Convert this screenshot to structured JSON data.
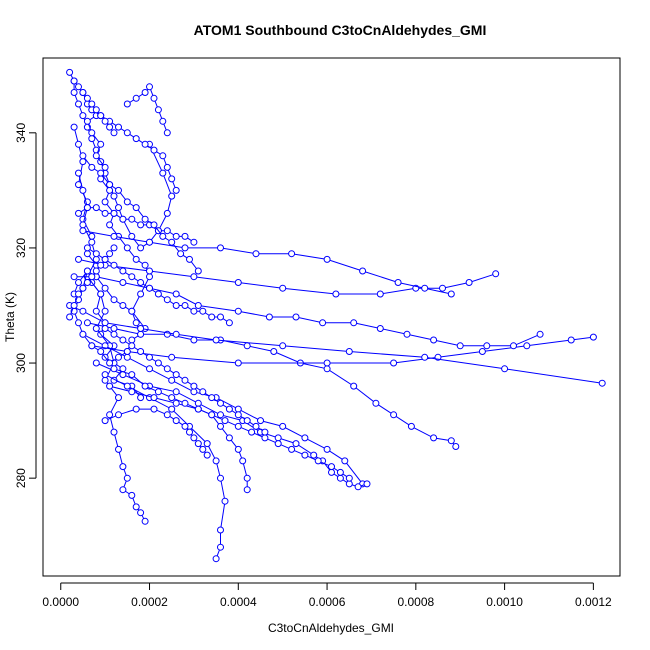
{
  "chart_data": {
    "type": "scatter",
    "title": "ATOM1 Southbound C3toCnAldehydes_GMI",
    "xlabel": "C3toCnAldehydes_GMI",
    "ylabel": "Theta (K)",
    "xlim": [
      -4e-05,
      0.00126
    ],
    "ylim": [
      263,
      353
    ],
    "xticks": [
      {
        "value": 0.0,
        "label": "0.0000"
      },
      {
        "value": 0.0002,
        "label": "0.0002"
      },
      {
        "value": 0.0004,
        "label": "0.0004"
      },
      {
        "value": 0.0006,
        "label": "0.0006"
      },
      {
        "value": 0.0008,
        "label": "0.0008"
      },
      {
        "value": 0.001,
        "label": "0.0010"
      },
      {
        "value": 0.0012,
        "label": "0.0012"
      }
    ],
    "yticks": [
      {
        "value": 280,
        "label": "280"
      },
      {
        "value": 300,
        "label": "300"
      },
      {
        "value": 320,
        "label": "320"
      },
      {
        "value": 340,
        "label": "340"
      }
    ],
    "grid": false,
    "legend": "none",
    "marker": "open-circle",
    "connected": true,
    "color": "#0000ff",
    "series": [
      {
        "x": [
          2e-05,
          3e-05,
          3e-05,
          4e-05,
          5e-05,
          6e-05,
          7e-05,
          8e-05,
          9e-05,
          0.0001,
          0.00011,
          0.00012,
          0.00013,
          0.00014,
          0.00016,
          0.00018,
          0.0002,
          0.00022,
          0.00024,
          0.00025,
          0.00023,
          0.0002
        ],
        "y": [
          350.5,
          349,
          347,
          345,
          343,
          341,
          339,
          337,
          335,
          333,
          331,
          329,
          327,
          325,
          322,
          320,
          321,
          323,
          326,
          329,
          333,
          338
        ]
      },
      {
        "x": [
          3e-05,
          4e-05,
          5e-05,
          4e-05,
          6e-05,
          5e-05,
          7e-05,
          6e-05,
          8e-05,
          7e-05,
          9e-05,
          8e-05,
          0.0001,
          9e-05,
          0.00012,
          0.0001,
          0.00014,
          0.00012,
          0.00016,
          0.00018
        ],
        "y": [
          341,
          338,
          335,
          331,
          328,
          325,
          322,
          319,
          317,
          314,
          312,
          309,
          307,
          305,
          303,
          301,
          299,
          297,
          296,
          294
        ]
      },
      {
        "x": [
          4e-05,
          5e-05,
          6e-05,
          5e-05,
          7e-05,
          8e-05,
          6e-05,
          9e-05,
          0.0001,
          8e-05,
          0.00011,
          0.00012,
          0.0001,
          0.00013,
          0.00011,
          0.00012,
          0.00013,
          0.00014,
          0.00015,
          0.00014,
          0.00016,
          0.00017,
          0.00018,
          0.00019
        ],
        "y": [
          333,
          330,
          327,
          324,
          321,
          318,
          315,
          312,
          309,
          306,
          303,
          300,
          297,
          294,
          291,
          288,
          285,
          282,
          280,
          278,
          277,
          275,
          274,
          272.5
        ]
      },
      {
        "x": [
          5e-05,
          6e-05,
          7e-05,
          8e-05,
          6e-05,
          7e-05,
          9e-05,
          8e-05,
          0.0001,
          9e-05,
          0.00011,
          0.0001,
          0.00012,
          0.00011,
          0.00013,
          0.00015,
          0.00017,
          0.00019,
          0.0002,
          0.00018,
          0.00016,
          0.00019
        ],
        "y": [
          347,
          345,
          344,
          343,
          342,
          340,
          338,
          336,
          334,
          332,
          330,
          328,
          326,
          324,
          322,
          320,
          318,
          317,
          315,
          312,
          309,
          306
        ]
      },
      {
        "x": [
          3e-05,
          4e-05,
          6e-05,
          8e-05,
          0.0001,
          0.00012,
          0.00014,
          0.00016,
          0.00017,
          0.00018,
          0.00016,
          0.00015,
          0.00013,
          0.00011,
          9e-05,
          7e-05,
          5e-05,
          4e-05,
          3e-05,
          4e-05,
          5e-05,
          6e-05
        ],
        "y": [
          312,
          314,
          316,
          315,
          313,
          311,
          310,
          309,
          307,
          305,
          304,
          302,
          301,
          300,
          302,
          303,
          305,
          307,
          309,
          311,
          313,
          316
        ]
      },
      {
        "x": [
          5e-05,
          0.0001,
          0.00015,
          0.0002,
          0.00025,
          0.0003,
          0.00035,
          0.0004,
          0.00045,
          0.0005,
          0.00055,
          0.0006,
          0.00064,
          0.00068
        ],
        "y": [
          305,
          303,
          301,
          299,
          297,
          295,
          294,
          292,
          290,
          289,
          287,
          285,
          283,
          279
        ]
      },
      {
        "x": [
          6e-05,
          0.00012,
          0.00018,
          0.00024,
          0.0003,
          0.00036,
          0.00042,
          0.00048,
          0.00054,
          0.0006,
          0.00066,
          0.00071,
          0.00075,
          0.00079,
          0.00084,
          0.00088,
          0.00089
        ],
        "y": [
          307,
          306,
          305,
          305,
          304,
          304,
          303,
          302,
          300,
          299,
          296,
          293,
          291,
          289,
          287,
          286.5,
          285.5
        ]
      },
      {
        "x": [
          7e-05,
          0.00015,
          0.00025,
          0.0004,
          0.0006,
          0.00075,
          0.00085,
          0.00095,
          0.00105,
          0.00115,
          0.0012
        ],
        "y": [
          303,
          302,
          301,
          300,
          300,
          300,
          301,
          302,
          303,
          304,
          304.5
        ]
      },
      {
        "x": [
          4e-05,
          0.0001,
          0.0002,
          0.0003,
          0.0004,
          0.0005,
          0.00062,
          0.00072,
          0.0008,
          0.00086,
          0.00092,
          0.00098
        ],
        "y": [
          318,
          317,
          316,
          315,
          314,
          313,
          312,
          312,
          313,
          313,
          314,
          315.5
        ]
      },
      {
        "x": [
          5e-05,
          0.00012,
          0.0002,
          0.00028,
          0.00036,
          0.00044,
          0.00052,
          0.0006,
          0.00068,
          0.00076,
          0.00082,
          0.00088
        ],
        "y": [
          323,
          322,
          321,
          320,
          320,
          319,
          319,
          318,
          316,
          314,
          313,
          312
        ]
      },
      {
        "x": [
          2e-05,
          5e-05,
          0.0001,
          0.00018,
          0.00026,
          0.00035,
          0.0005,
          0.00065,
          0.00082,
          0.001,
          0.00122
        ],
        "y": [
          310,
          309,
          307,
          306,
          305,
          304,
          303,
          302,
          301,
          299,
          296.5
        ]
      },
      {
        "x": [
          3e-05,
          8e-05,
          0.00014,
          0.0002,
          0.00026,
          0.00031,
          0.0004,
          0.00047,
          0.00053,
          0.00059,
          0.00066,
          0.00072,
          0.00078,
          0.00084,
          0.0009,
          0.00096,
          0.00102,
          0.00108
        ],
        "y": [
          315,
          315,
          314,
          313,
          312,
          310,
          309,
          308,
          308,
          307,
          307,
          306,
          305,
          304,
          303,
          303,
          303,
          305
        ]
      },
      {
        "x": [
          8e-05,
          0.00014,
          0.0002,
          0.00026,
          0.00031,
          0.00036,
          0.00041,
          0.00045,
          0.00049,
          0.00053,
          0.00057,
          0.00059,
          0.00061,
          0.00063,
          0.00065,
          0.00067,
          0.00069
        ],
        "y": [
          300,
          298,
          296,
          295,
          293,
          291,
          290,
          288,
          287,
          286,
          284,
          283,
          281,
          280,
          279,
          278.5,
          279
        ]
      },
      {
        "x": [
          0.0001,
          0.00015,
          0.0002,
          0.00025,
          0.00029,
          0.00033,
          0.00035,
          0.00036,
          0.00037,
          0.00036,
          0.00036,
          0.00035
        ],
        "y": [
          298,
          296,
          294,
          292,
          289,
          286,
          283,
          280,
          276,
          271,
          268,
          266
        ]
      },
      {
        "x": [
          0.00011,
          0.00016,
          0.00021,
          0.00026,
          0.00031,
          0.00034,
          0.00036,
          0.00038,
          0.0004,
          0.00041,
          0.00042,
          0.00042
        ],
        "y": [
          296,
          295,
          294,
          293,
          292,
          291,
          289,
          287,
          285,
          283,
          280,
          278
        ]
      },
      {
        "x": [
          0.0001,
          0.00013,
          0.00017,
          0.00021,
          0.00024,
          0.00026,
          0.00028,
          0.00029,
          0.0003,
          0.00031,
          0.00032,
          0.00033
        ],
        "y": [
          290,
          291,
          292,
          292,
          291,
          290,
          289,
          288,
          287,
          286,
          285,
          284
        ]
      },
      {
        "x": [
          0.00012,
          0.00016,
          0.00019,
          0.00022,
          0.00025,
          0.00028,
          0.00031,
          0.00034,
          0.00037,
          0.0004,
          0.00043,
          0.00046,
          0.00049,
          0.00052,
          0.00055,
          0.00058,
          0.00061,
          0.00063,
          0.00065
        ],
        "y": [
          299,
          298,
          296,
          295,
          294,
          293,
          292,
          291,
          290,
          289,
          288,
          287,
          286,
          285,
          284,
          283,
          282,
          281,
          280
        ]
      },
      {
        "x": [
          7e-05,
          9e-05,
          0.00011,
          0.00013,
          0.00015,
          0.00017,
          0.00019,
          0.00021,
          0.00023,
          0.00024,
          0.00025,
          0.00026
        ],
        "y": [
          344,
          343,
          342,
          341,
          340,
          339,
          338,
          337,
          336,
          334,
          332,
          330
        ]
      },
      {
        "x": [
          4e-05,
          6e-05,
          8e-05,
          0.0001,
          0.00012,
          0.00014,
          0.00016,
          0.00018,
          0.0002,
          0.00022,
          0.00024,
          0.00026,
          0.00028,
          0.0003
        ],
        "y": [
          326,
          327,
          327,
          326,
          326,
          325,
          325,
          324,
          324,
          323,
          323,
          322,
          322,
          321
        ]
      },
      {
        "x": [
          0.00015,
          0.00017,
          0.00019,
          0.0002,
          0.00021,
          0.00022,
          0.00023,
          0.00024
        ],
        "y": [
          345,
          346,
          347,
          348,
          346,
          344,
          342,
          340
        ]
      },
      {
        "x": [
          6e-05,
          8e-05,
          0.0001,
          0.00012,
          0.00014,
          0.00016,
          0.00018,
          0.0002,
          0.00022,
          0.00024,
          0.00026,
          0.00028,
          0.0003,
          0.00032,
          0.00034,
          0.00036,
          0.00038
        ],
        "y": [
          320,
          319,
          318,
          317,
          316,
          315,
          314,
          313,
          312,
          311,
          310,
          310,
          309,
          309,
          308,
          308,
          307
        ]
      },
      {
        "x": [
          5e-05,
          7e-05,
          9e-05,
          0.00011,
          0.00013,
          0.00015,
          0.00017,
          0.00019,
          0.00021,
          0.00023,
          0.00025,
          0.00027,
          0.00029,
          0.00031
        ],
        "y": [
          336,
          334,
          333,
          331,
          330,
          328,
          327,
          325,
          324,
          322,
          321,
          319,
          318,
          316
        ]
      },
      {
        "x": [
          3e-05,
          4e-05,
          5e-05,
          6e-05,
          7e-05,
          8e-05,
          9e-05,
          0.0001,
          0.00011,
          0.00012
        ],
        "y": [
          349,
          348,
          347,
          346,
          345,
          344,
          343,
          342,
          341,
          340
        ]
      },
      {
        "x": [
          0.0001,
          0.00012,
          0.00014,
          0.00016,
          0.00018,
          0.0002,
          0.00022,
          0.00024,
          0.00026,
          0.00028,
          0.0003,
          0.00032,
          0.00034,
          0.00036,
          0.00038,
          0.0004,
          0.00042,
          0.00044,
          0.00046
        ],
        "y": [
          306,
          305,
          304,
          303,
          302,
          301,
          300,
          299,
          298,
          297,
          296,
          295,
          294,
          293,
          292,
          291,
          290,
          289,
          288
        ]
      },
      {
        "x": [
          2e-05,
          3e-05,
          4e-05,
          5e-05,
          6e-05,
          7e-05,
          8e-05,
          9e-05,
          0.0001,
          0.00011,
          0.00012
        ],
        "y": [
          308,
          310,
          312,
          313,
          314,
          315,
          316,
          317,
          318,
          319,
          320
        ]
      }
    ]
  }
}
